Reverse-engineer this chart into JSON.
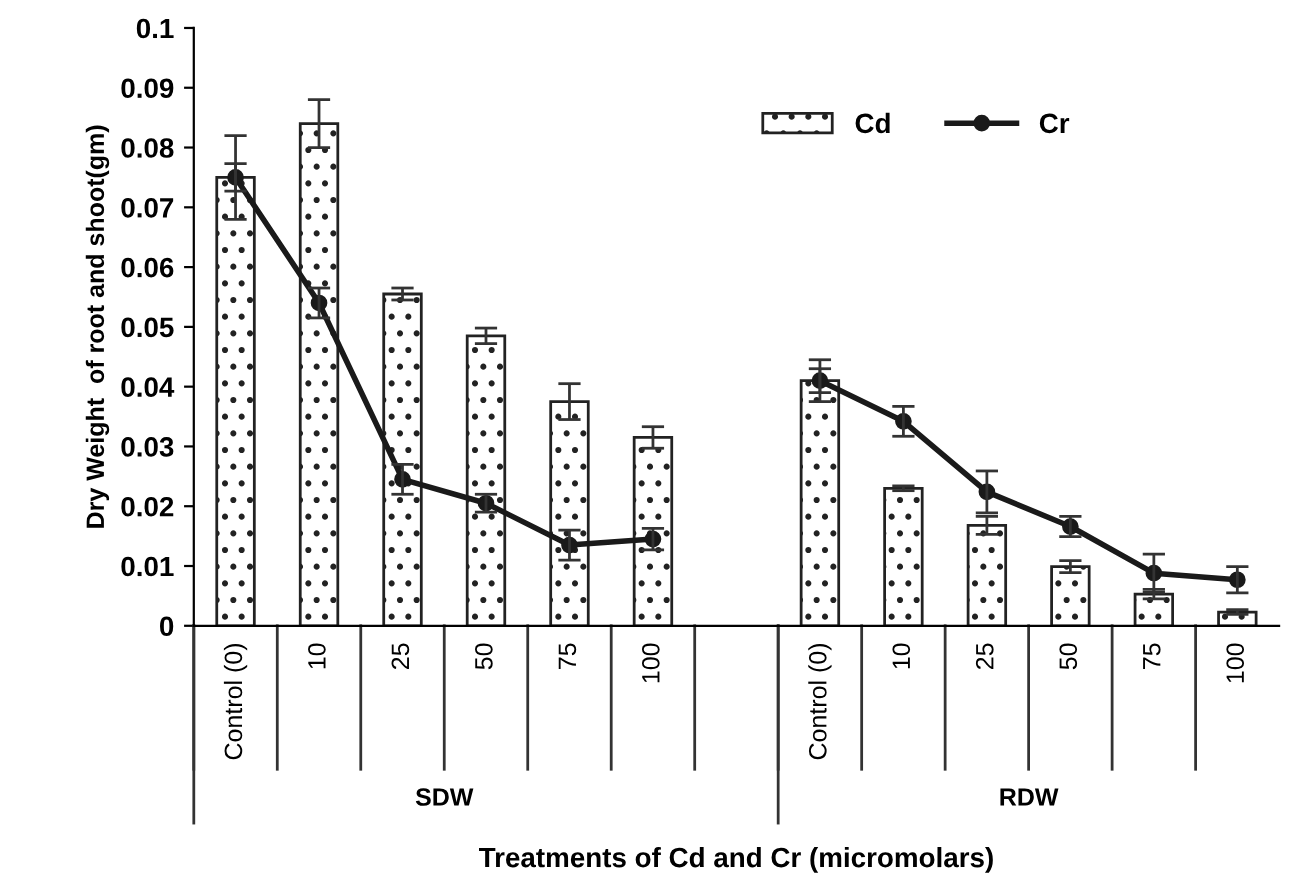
{
  "chart_data": {
    "type": "bar",
    "xlabel": "Treatments of Cd and Cr (micromolars)",
    "ylabel": "Dry Weight  of root and shoot(gm)",
    "categories": [
      "Control (0)",
      "10",
      "25",
      "50",
      "75",
      "100",
      null,
      "Control (0)",
      "10",
      "25",
      "50",
      "75",
      "100"
    ],
    "series": [
      {
        "name": "Cd",
        "color": "#222222",
        "values": [
          0.075,
          0.084,
          0.0555,
          0.0485,
          0.0375,
          0.0315,
          null,
          0.041,
          0.023,
          0.0168,
          0.0099,
          0.0053,
          0.0023
        ],
        "errors": [
          0.007,
          0.004,
          0.001,
          0.0013,
          0.003,
          0.0018,
          null,
          0.002,
          0.0004,
          0.0015,
          0.001,
          0.0008,
          0.0004
        ]
      },
      {
        "name": "Cr",
        "type": "line",
        "color": "#1a1a1a",
        "marker": "circle",
        "values": [
          0.075,
          0.054,
          0.0245,
          0.0205,
          0.0135,
          0.0145,
          null,
          0.041,
          0.0342,
          0.0224,
          0.0166,
          0.0088,
          0.0077
        ],
        "errors": [
          0.0023,
          0.0025,
          0.0025,
          0.0015,
          0.0025,
          0.0018,
          null,
          0.0035,
          0.0025,
          0.0035,
          0.0017,
          0.0032,
          0.0022
        ]
      }
    ],
    "annotations": [
      "SDW",
      "RDW"
    ],
    "ylim": [
      0,
      0.1
    ],
    "yticks": [
      0,
      0.01,
      0.02,
      0.03,
      0.04,
      0.05,
      0.06,
      0.07,
      0.08,
      0.09,
      0.1
    ],
    "grid": false,
    "legend": "top right"
  }
}
